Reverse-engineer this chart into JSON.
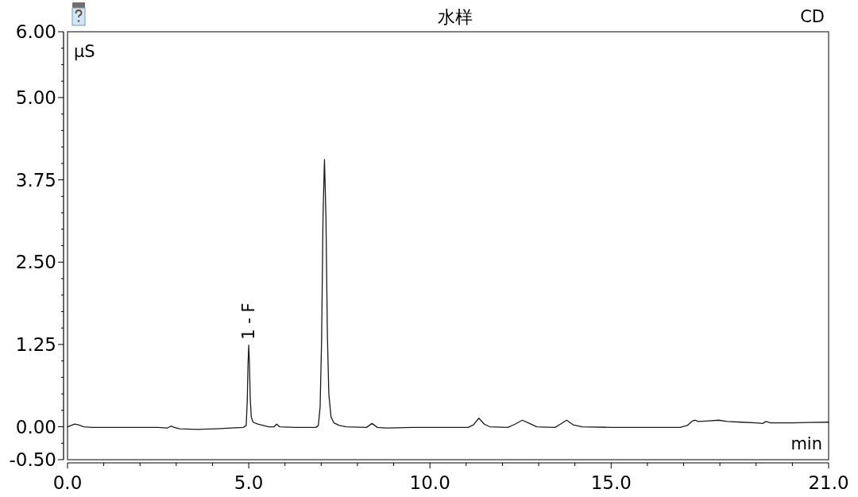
{
  "chart_data": {
    "type": "line",
    "title": "水样",
    "xlabel": "min",
    "ylabel": "µS",
    "annotations": [
      {
        "text": "1 - F",
        "x": 5.0,
        "y": 1.24
      },
      "CD"
    ],
    "x": [
      0.0,
      0.1,
      0.2,
      0.3,
      0.45,
      0.7,
      1.5,
      2.5,
      2.75,
      2.85,
      2.95,
      3.1,
      3.6,
      4.1,
      4.5,
      4.85,
      4.93,
      4.96,
      4.98,
      5.0,
      5.02,
      5.04,
      5.07,
      5.12,
      5.25,
      5.55,
      5.7,
      5.77,
      5.85,
      6.3,
      6.85,
      6.92,
      6.97,
      7.01,
      7.05,
      7.09,
      7.13,
      7.17,
      7.21,
      7.27,
      7.35,
      7.5,
      7.7,
      8.25,
      8.4,
      8.55,
      8.8,
      9.5,
      10.3,
      11.05,
      11.2,
      11.35,
      11.5,
      11.65,
      12.15,
      12.35,
      12.55,
      12.75,
      12.95,
      13.45,
      13.6,
      13.77,
      13.95,
      14.2,
      15.0,
      16.0,
      16.9,
      17.1,
      17.25,
      17.32,
      17.4,
      17.7,
      17.97,
      18.2,
      18.59,
      19.0,
      19.18,
      19.27,
      19.4,
      20.0,
      21.0
    ],
    "series": [
      {
        "color": "#1a1a1a",
        "values": [
          0.0,
          0.02,
          0.04,
          0.03,
          0.0,
          -0.01,
          -0.01,
          -0.01,
          -0.02,
          0.01,
          -0.01,
          -0.03,
          -0.04,
          -0.03,
          -0.02,
          -0.01,
          0.02,
          0.4,
          0.95,
          1.24,
          0.95,
          0.45,
          0.15,
          0.07,
          0.04,
          0.0,
          0.0,
          0.04,
          0.0,
          -0.01,
          -0.01,
          0.02,
          0.3,
          1.3,
          3.2,
          4.06,
          3.2,
          1.4,
          0.5,
          0.15,
          0.06,
          0.02,
          0.0,
          -0.01,
          0.05,
          -0.01,
          -0.02,
          -0.01,
          -0.01,
          -0.01,
          0.03,
          0.13,
          0.04,
          0.0,
          -0.01,
          0.04,
          0.1,
          0.05,
          0.0,
          -0.01,
          0.04,
          0.1,
          0.03,
          0.0,
          -0.01,
          -0.01,
          -0.01,
          0.02,
          0.09,
          0.1,
          0.08,
          0.09,
          0.1,
          0.08,
          0.07,
          0.06,
          0.05,
          0.08,
          0.06,
          0.06,
          0.07
        ]
      }
    ],
    "xlim": [
      0,
      21
    ],
    "ylim": [
      -0.5,
      6
    ],
    "xticks": [
      {
        "value": 0,
        "label": "0.0"
      },
      {
        "value": 1,
        "label": null
      },
      {
        "value": 2,
        "label": null
      },
      {
        "value": 3,
        "label": null
      },
      {
        "value": 4,
        "label": null
      },
      {
        "value": 5,
        "label": "5.0"
      },
      {
        "value": 6,
        "label": null
      },
      {
        "value": 7,
        "label": null
      },
      {
        "value": 8,
        "label": null
      },
      {
        "value": 9,
        "label": null
      },
      {
        "value": 10,
        "label": "10.0"
      },
      {
        "value": 11,
        "label": null
      },
      {
        "value": 12,
        "label": null
      },
      {
        "value": 13,
        "label": null
      },
      {
        "value": 14,
        "label": null
      },
      {
        "value": 15,
        "label": "15.0"
      },
      {
        "value": 16,
        "label": null
      },
      {
        "value": 17,
        "label": null
      },
      {
        "value": 18,
        "label": null
      },
      {
        "value": 19,
        "label": null
      },
      {
        "value": 20,
        "label": null
      },
      {
        "value": 21,
        "label": "21.0"
      }
    ],
    "yticks": [
      {
        "value": -0.5,
        "label": "-0.50"
      },
      {
        "value": -0.25,
        "label": null
      },
      {
        "value": 0,
        "label": "0.00"
      },
      {
        "value": 0.25,
        "label": null
      },
      {
        "value": 0.5,
        "label": null
      },
      {
        "value": 0.75,
        "label": null
      },
      {
        "value": 1.0,
        "label": null
      },
      {
        "value": 1.25,
        "label": "1.25"
      },
      {
        "value": 1.5,
        "label": null
      },
      {
        "value": 1.75,
        "label": null
      },
      {
        "value": 2.0,
        "label": null
      },
      {
        "value": 2.25,
        "label": null
      },
      {
        "value": 2.5,
        "label": "2.50"
      },
      {
        "value": 2.75,
        "label": null
      },
      {
        "value": 3.0,
        "label": null
      },
      {
        "value": 3.25,
        "label": null
      },
      {
        "value": 3.5,
        "label": null
      },
      {
        "value": 3.75,
        "label": "3.75"
      },
      {
        "value": 4.0,
        "label": null
      },
      {
        "value": 4.25,
        "label": null
      },
      {
        "value": 4.5,
        "label": null
      },
      {
        "value": 4.75,
        "label": null
      },
      {
        "value": 5,
        "label": "5.00"
      },
      {
        "value": 5.25,
        "label": null
      },
      {
        "value": 5.5,
        "label": null
      },
      {
        "value": 5.75,
        "label": null
      },
      {
        "value": 6,
        "label": "6.00"
      }
    ]
  }
}
